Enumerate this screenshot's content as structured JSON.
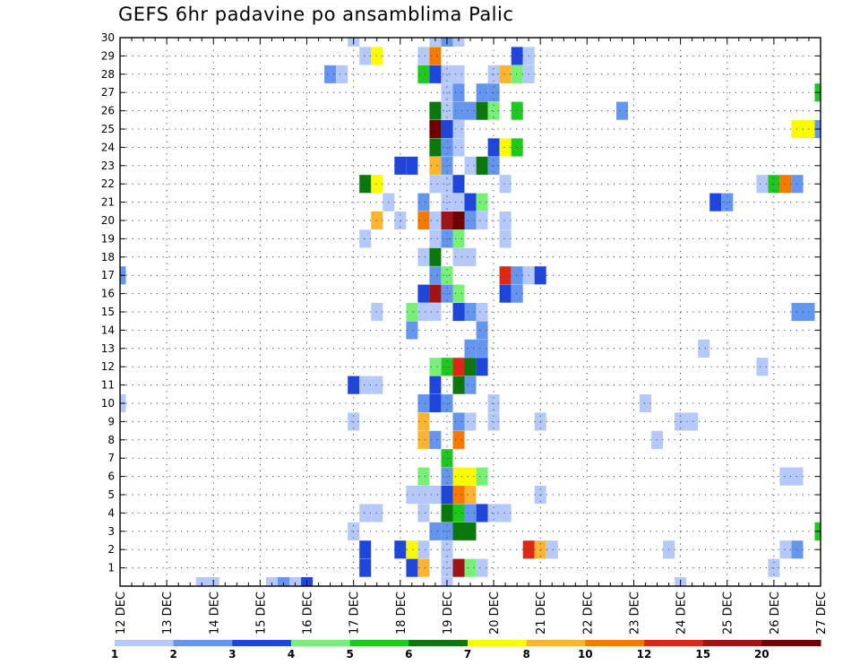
{
  "title": "GEFS 6hr padavine po ansamblima Palic",
  "chart_data": {
    "type": "heatmap",
    "title": "GEFS 6hr padavine po ansamblima Palic",
    "xlabel": "",
    "ylabel": "",
    "x_ticks": [
      "12 DEC",
      "13 DEC",
      "14 DEC",
      "15 DEC",
      "16 DEC",
      "17 DEC",
      "18 DEC",
      "19 DEC",
      "20 DEC",
      "21 DEC",
      "22 DEC",
      "23 DEC",
      "24 DEC",
      "25 DEC",
      "26 DEC",
      "27 DEC"
    ],
    "xlim": [
      0,
      60
    ],
    "y_ticks": [
      1,
      2,
      3,
      4,
      5,
      6,
      7,
      8,
      9,
      10,
      11,
      12,
      13,
      14,
      15,
      16,
      17,
      18,
      19,
      20,
      21,
      22,
      23,
      24,
      25,
      26,
      27,
      28,
      29,
      30
    ],
    "ylim": [
      0,
      30
    ],
    "grid": true,
    "colorbar": {
      "levels": [
        "1",
        "2",
        "3",
        "4",
        "5",
        "6",
        "7",
        "8",
        "10",
        "12",
        "15",
        "20"
      ],
      "colors": [
        "#b4c8fa",
        "#6496f0",
        "#1e46dc",
        "#78f078",
        "#1ec81e",
        "#0a780a",
        "#fafa00",
        "#fab432",
        "#f57a00",
        "#dc2814",
        "#a01414",
        "#6e0000"
      ]
    },
    "cell_note": "x = 6-hour step index from 12 DEC 00Z (4 steps per day), y = ensemble member (0-30), c = color class index into colorbar",
    "cells": [
      {
        "x": 7,
        "y": 0,
        "c": 1
      },
      {
        "x": 8,
        "y": 0,
        "c": 1
      },
      {
        "x": 13,
        "y": 0,
        "c": 1
      },
      {
        "x": 14,
        "y": 0,
        "c": 2
      },
      {
        "x": 15,
        "y": 0,
        "c": 1
      },
      {
        "x": 16,
        "y": 0,
        "c": 3
      },
      {
        "x": 28,
        "y": 0,
        "c": 1
      },
      {
        "x": 48,
        "y": 0,
        "c": 1
      },
      {
        "x": 21,
        "y": 1,
        "c": 3
      },
      {
        "x": 25,
        "y": 1,
        "c": 3
      },
      {
        "x": 26,
        "y": 1,
        "c": 8
      },
      {
        "x": 28,
        "y": 1,
        "c": 1
      },
      {
        "x": 29,
        "y": 1,
        "c": 11
      },
      {
        "x": 30,
        "y": 1,
        "c": 4
      },
      {
        "x": 31,
        "y": 1,
        "c": 1
      },
      {
        "x": 56,
        "y": 1,
        "c": 1
      },
      {
        "x": 21,
        "y": 2,
        "c": 3
      },
      {
        "x": 24,
        "y": 2,
        "c": 3
      },
      {
        "x": 25,
        "y": 2,
        "c": 7
      },
      {
        "x": 26,
        "y": 2,
        "c": 1
      },
      {
        "x": 28,
        "y": 2,
        "c": 1
      },
      {
        "x": 35,
        "y": 2,
        "c": 10
      },
      {
        "x": 36,
        "y": 2,
        "c": 8
      },
      {
        "x": 37,
        "y": 2,
        "c": 1
      },
      {
        "x": 47,
        "y": 2,
        "c": 1
      },
      {
        "x": 57,
        "y": 2,
        "c": 1
      },
      {
        "x": 58,
        "y": 2,
        "c": 2
      },
      {
        "x": 20,
        "y": 3,
        "c": 1
      },
      {
        "x": 27,
        "y": 3,
        "c": 2
      },
      {
        "x": 28,
        "y": 3,
        "c": 2
      },
      {
        "x": 29,
        "y": 3,
        "c": 6
      },
      {
        "x": 30,
        "y": 3,
        "c": 6
      },
      {
        "x": 60,
        "y": 3,
        "c": 5
      },
      {
        "x": 21,
        "y": 4,
        "c": 1
      },
      {
        "x": 22,
        "y": 4,
        "c": 1
      },
      {
        "x": 26,
        "y": 4,
        "c": 1
      },
      {
        "x": 28,
        "y": 4,
        "c": 6
      },
      {
        "x": 29,
        "y": 4,
        "c": 5
      },
      {
        "x": 30,
        "y": 4,
        "c": 2
      },
      {
        "x": 31,
        "y": 4,
        "c": 3
      },
      {
        "x": 32,
        "y": 4,
        "c": 1
      },
      {
        "x": 33,
        "y": 4,
        "c": 1
      },
      {
        "x": 25,
        "y": 5,
        "c": 1
      },
      {
        "x": 26,
        "y": 5,
        "c": 1
      },
      {
        "x": 27,
        "y": 5,
        "c": 1
      },
      {
        "x": 28,
        "y": 5,
        "c": 3
      },
      {
        "x": 29,
        "y": 5,
        "c": 9
      },
      {
        "x": 30,
        "y": 5,
        "c": 8
      },
      {
        "x": 36,
        "y": 5,
        "c": 1
      },
      {
        "x": 26,
        "y": 6,
        "c": 4
      },
      {
        "x": 28,
        "y": 6,
        "c": 2
      },
      {
        "x": 29,
        "y": 6,
        "c": 7
      },
      {
        "x": 30,
        "y": 6,
        "c": 7
      },
      {
        "x": 31,
        "y": 6,
        "c": 4
      },
      {
        "x": 57,
        "y": 6,
        "c": 1
      },
      {
        "x": 58,
        "y": 6,
        "c": 1
      },
      {
        "x": 28,
        "y": 7,
        "c": 5
      },
      {
        "x": 26,
        "y": 8,
        "c": 8
      },
      {
        "x": 27,
        "y": 8,
        "c": 2
      },
      {
        "x": 29,
        "y": 8,
        "c": 9
      },
      {
        "x": 46,
        "y": 8,
        "c": 1
      },
      {
        "x": 20,
        "y": 9,
        "c": 1
      },
      {
        "x": 26,
        "y": 9,
        "c": 8
      },
      {
        "x": 29,
        "y": 9,
        "c": 2
      },
      {
        "x": 30,
        "y": 9,
        "c": 1
      },
      {
        "x": 32,
        "y": 9,
        "c": 1
      },
      {
        "x": 36,
        "y": 9,
        "c": 1
      },
      {
        "x": 48,
        "y": 9,
        "c": 1
      },
      {
        "x": 49,
        "y": 9,
        "c": 1
      },
      {
        "x": 0,
        "y": 10,
        "c": 1
      },
      {
        "x": 26,
        "y": 10,
        "c": 2
      },
      {
        "x": 27,
        "y": 10,
        "c": 3
      },
      {
        "x": 28,
        "y": 10,
        "c": 2
      },
      {
        "x": 32,
        "y": 10,
        "c": 1
      },
      {
        "x": 45,
        "y": 10,
        "c": 1
      },
      {
        "x": 20,
        "y": 11,
        "c": 3
      },
      {
        "x": 21,
        "y": 11,
        "c": 1
      },
      {
        "x": 22,
        "y": 11,
        "c": 1
      },
      {
        "x": 27,
        "y": 11,
        "c": 3
      },
      {
        "x": 29,
        "y": 11,
        "c": 6
      },
      {
        "x": 30,
        "y": 11,
        "c": 2
      },
      {
        "x": 27,
        "y": 12,
        "c": 4
      },
      {
        "x": 28,
        "y": 12,
        "c": 5
      },
      {
        "x": 29,
        "y": 12,
        "c": 10
      },
      {
        "x": 30,
        "y": 12,
        "c": 6
      },
      {
        "x": 31,
        "y": 12,
        "c": 3
      },
      {
        "x": 55,
        "y": 12,
        "c": 1
      },
      {
        "x": 30,
        "y": 13,
        "c": 2
      },
      {
        "x": 31,
        "y": 13,
        "c": 2
      },
      {
        "x": 50,
        "y": 13,
        "c": 1
      },
      {
        "x": 25,
        "y": 14,
        "c": 2
      },
      {
        "x": 31,
        "y": 14,
        "c": 2
      },
      {
        "x": 22,
        "y": 15,
        "c": 1
      },
      {
        "x": 25,
        "y": 15,
        "c": 4
      },
      {
        "x": 26,
        "y": 15,
        "c": 1
      },
      {
        "x": 27,
        "y": 15,
        "c": 1
      },
      {
        "x": 29,
        "y": 15,
        "c": 3
      },
      {
        "x": 30,
        "y": 15,
        "c": 2
      },
      {
        "x": 31,
        "y": 15,
        "c": 1
      },
      {
        "x": 58,
        "y": 15,
        "c": 2
      },
      {
        "x": 59,
        "y": 15,
        "c": 2
      },
      {
        "x": 26,
        "y": 16,
        "c": 3
      },
      {
        "x": 27,
        "y": 16,
        "c": 11
      },
      {
        "x": 28,
        "y": 16,
        "c": 2
      },
      {
        "x": 29,
        "y": 16,
        "c": 4
      },
      {
        "x": 33,
        "y": 16,
        "c": 3
      },
      {
        "x": 34,
        "y": 16,
        "c": 2
      },
      {
        "x": 0,
        "y": 17,
        "c": 2
      },
      {
        "x": 27,
        "y": 17,
        "c": 2
      },
      {
        "x": 28,
        "y": 17,
        "c": 4
      },
      {
        "x": 33,
        "y": 17,
        "c": 10
      },
      {
        "x": 34,
        "y": 17,
        "c": 2
      },
      {
        "x": 35,
        "y": 17,
        "c": 1
      },
      {
        "x": 36,
        "y": 17,
        "c": 3
      },
      {
        "x": 26,
        "y": 18,
        "c": 1
      },
      {
        "x": 27,
        "y": 18,
        "c": 6
      },
      {
        "x": 29,
        "y": 18,
        "c": 1
      },
      {
        "x": 30,
        "y": 18,
        "c": 1
      },
      {
        "x": 21,
        "y": 19,
        "c": 1
      },
      {
        "x": 27,
        "y": 19,
        "c": 1
      },
      {
        "x": 28,
        "y": 19,
        "c": 2
      },
      {
        "x": 29,
        "y": 19,
        "c": 4
      },
      {
        "x": 33,
        "y": 19,
        "c": 1
      },
      {
        "x": 22,
        "y": 20,
        "c": 8
      },
      {
        "x": 24,
        "y": 20,
        "c": 1
      },
      {
        "x": 26,
        "y": 20,
        "c": 9
      },
      {
        "x": 27,
        "y": 20,
        "c": 1
      },
      {
        "x": 28,
        "y": 20,
        "c": 11
      },
      {
        "x": 29,
        "y": 20,
        "c": 12
      },
      {
        "x": 30,
        "y": 20,
        "c": 2
      },
      {
        "x": 31,
        "y": 20,
        "c": 1
      },
      {
        "x": 33,
        "y": 20,
        "c": 1
      },
      {
        "x": 23,
        "y": 21,
        "c": 1
      },
      {
        "x": 26,
        "y": 21,
        "c": 2
      },
      {
        "x": 28,
        "y": 21,
        "c": 1
      },
      {
        "x": 29,
        "y": 21,
        "c": 1
      },
      {
        "x": 30,
        "y": 21,
        "c": 3
      },
      {
        "x": 31,
        "y": 21,
        "c": 4
      },
      {
        "x": 51,
        "y": 21,
        "c": 3
      },
      {
        "x": 52,
        "y": 21,
        "c": 2
      },
      {
        "x": 21,
        "y": 22,
        "c": 6
      },
      {
        "x": 22,
        "y": 22,
        "c": 7
      },
      {
        "x": 27,
        "y": 22,
        "c": 1
      },
      {
        "x": 28,
        "y": 22,
        "c": 1
      },
      {
        "x": 29,
        "y": 22,
        "c": 3
      },
      {
        "x": 33,
        "y": 22,
        "c": 1
      },
      {
        "x": 55,
        "y": 22,
        "c": 1
      },
      {
        "x": 56,
        "y": 22,
        "c": 5
      },
      {
        "x": 57,
        "y": 22,
        "c": 9
      },
      {
        "x": 58,
        "y": 22,
        "c": 2
      },
      {
        "x": 24,
        "y": 23,
        "c": 3
      },
      {
        "x": 25,
        "y": 23,
        "c": 3
      },
      {
        "x": 27,
        "y": 23,
        "c": 8
      },
      {
        "x": 28,
        "y": 23,
        "c": 2
      },
      {
        "x": 30,
        "y": 23,
        "c": 1
      },
      {
        "x": 31,
        "y": 23,
        "c": 6
      },
      {
        "x": 32,
        "y": 23,
        "c": 2
      },
      {
        "x": 27,
        "y": 24,
        "c": 6
      },
      {
        "x": 28,
        "y": 24,
        "c": 2
      },
      {
        "x": 29,
        "y": 24,
        "c": 1
      },
      {
        "x": 32,
        "y": 24,
        "c": 3
      },
      {
        "x": 33,
        "y": 24,
        "c": 7
      },
      {
        "x": 34,
        "y": 24,
        "c": 5
      },
      {
        "x": 27,
        "y": 25,
        "c": 12
      },
      {
        "x": 28,
        "y": 25,
        "c": 3
      },
      {
        "x": 29,
        "y": 25,
        "c": 1
      },
      {
        "x": 58,
        "y": 25,
        "c": 7
      },
      {
        "x": 59,
        "y": 25,
        "c": 7
      },
      {
        "x": 60,
        "y": 25,
        "c": 2
      },
      {
        "x": 27,
        "y": 26,
        "c": 6
      },
      {
        "x": 28,
        "y": 26,
        "c": 1
      },
      {
        "x": 29,
        "y": 26,
        "c": 2
      },
      {
        "x": 30,
        "y": 26,
        "c": 2
      },
      {
        "x": 31,
        "y": 26,
        "c": 6
      },
      {
        "x": 32,
        "y": 26,
        "c": 4
      },
      {
        "x": 34,
        "y": 26,
        "c": 5
      },
      {
        "x": 43,
        "y": 26,
        "c": 2
      },
      {
        "x": 28,
        "y": 27,
        "c": 1
      },
      {
        "x": 29,
        "y": 27,
        "c": 2
      },
      {
        "x": 31,
        "y": 27,
        "c": 2
      },
      {
        "x": 32,
        "y": 27,
        "c": 2
      },
      {
        "x": 60,
        "y": 27,
        "c": 5
      },
      {
        "x": 18,
        "y": 28,
        "c": 2
      },
      {
        "x": 19,
        "y": 28,
        "c": 1
      },
      {
        "x": 26,
        "y": 28,
        "c": 5
      },
      {
        "x": 27,
        "y": 28,
        "c": 3
      },
      {
        "x": 28,
        "y": 28,
        "c": 1
      },
      {
        "x": 29,
        "y": 28,
        "c": 1
      },
      {
        "x": 32,
        "y": 28,
        "c": 1
      },
      {
        "x": 33,
        "y": 28,
        "c": 8
      },
      {
        "x": 34,
        "y": 28,
        "c": 4
      },
      {
        "x": 35,
        "y": 28,
        "c": 1
      },
      {
        "x": 21,
        "y": 29,
        "c": 1
      },
      {
        "x": 22,
        "y": 29,
        "c": 7
      },
      {
        "x": 26,
        "y": 29,
        "c": 1
      },
      {
        "x": 27,
        "y": 29,
        "c": 9
      },
      {
        "x": 34,
        "y": 29,
        "c": 3
      },
      {
        "x": 35,
        "y": 29,
        "c": 1
      },
      {
        "x": 20,
        "y": 30,
        "c": 1
      },
      {
        "x": 27,
        "y": 30,
        "c": 1
      },
      {
        "x": 28,
        "y": 30,
        "c": 2
      },
      {
        "x": 29,
        "y": 30,
        "c": 1
      }
    ]
  }
}
